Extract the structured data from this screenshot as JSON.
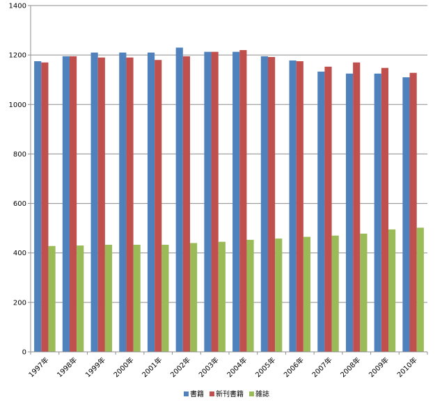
{
  "chart_data": {
    "type": "bar",
    "categories": [
      "1997年",
      "1998年",
      "1999年",
      "2000年",
      "2001年",
      "2002年",
      "2003年",
      "2004年",
      "2005年",
      "2006年",
      "2007年",
      "2008年",
      "2009年",
      "2010年"
    ],
    "series": [
      {
        "name": "書籍",
        "color": "#4f81bd",
        "values": [
          1175,
          1195,
          1210,
          1210,
          1210,
          1230,
          1213,
          1213,
          1195,
          1178,
          1133,
          1125,
          1125,
          1110
        ]
      },
      {
        "name": "新刊書籍",
        "color": "#c0504d",
        "values": [
          1170,
          1195,
          1190,
          1190,
          1180,
          1195,
          1213,
          1220,
          1192,
          1175,
          1153,
          1170,
          1148,
          1128
        ]
      },
      {
        "name": "雑誌",
        "color": "#9bbb59",
        "values": [
          428,
          430,
          433,
          433,
          433,
          440,
          445,
          453,
          458,
          465,
          470,
          478,
          495,
          502
        ]
      }
    ],
    "y_ticks": [
      "0",
      "200",
      "400",
      "600",
      "800",
      "1000",
      "1200",
      "1400"
    ],
    "ylim": [
      0,
      1400
    ],
    "grid": true,
    "legend_position": "bottom"
  }
}
